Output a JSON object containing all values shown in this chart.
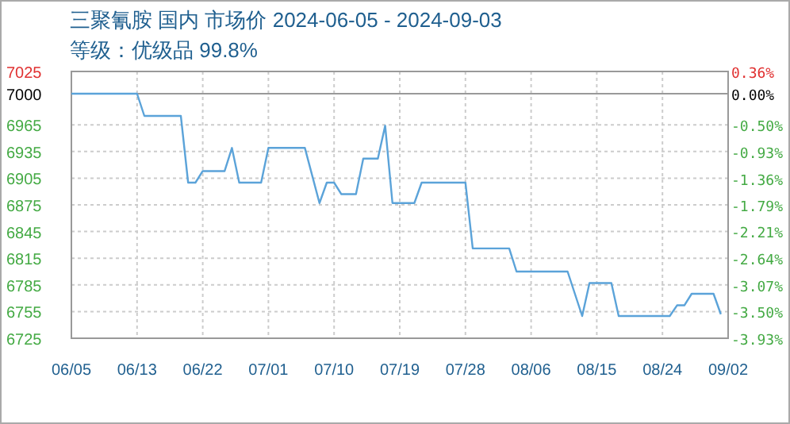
{
  "chart_data": {
    "type": "line",
    "title": "三聚氰胺 国内 市场价 2024-06-05 - 2024-09-03",
    "subtitle": "等级：优级品 99.8%",
    "x": [
      "2024-06-05",
      "2024-06-14",
      "2024-06-15",
      "2024-06-20",
      "2024-06-21",
      "2024-06-22",
      "2024-06-23",
      "2024-06-26",
      "2024-06-27",
      "2024-06-28",
      "2024-07-01",
      "2024-07-02",
      "2024-07-07",
      "2024-07-09",
      "2024-07-10",
      "2024-07-11",
      "2024-07-12",
      "2024-07-14",
      "2024-07-15",
      "2024-07-17",
      "2024-07-18",
      "2024-07-19",
      "2024-07-22",
      "2024-07-23",
      "2024-07-29",
      "2024-07-30",
      "2024-08-04",
      "2024-08-05",
      "2024-08-12",
      "2024-08-14",
      "2024-08-15",
      "2024-08-18",
      "2024-08-19",
      "2024-08-26",
      "2024-08-27",
      "2024-08-28",
      "2024-08-29",
      "2024-09-01",
      "2024-09-02"
    ],
    "series": [
      {
        "color": "#5ba3d9",
        "values": [
          7000,
          7000,
          6975,
          6975,
          6900,
          6900,
          6913,
          6913,
          6939,
          6900,
          6900,
          6939,
          6939,
          6877,
          6900,
          6900,
          6887,
          6887,
          6927,
          6927,
          6964,
          6877,
          6877,
          6900,
          6900,
          6826,
          6826,
          6800,
          6800,
          6750,
          6787,
          6787,
          6750,
          6750,
          6762,
          6762,
          6775,
          6775,
          6752
        ]
      }
    ],
    "xlim": [
      "2024-06-05",
      "2024-09-03"
    ],
    "xticks": [
      {
        "value": "2024-06-05",
        "label": "06/05"
      },
      {
        "value": "2024-06-14",
        "label": "06/13"
      },
      {
        "value": "2024-06-23",
        "label": "06/22"
      },
      {
        "value": "2024-07-02",
        "label": "07/01"
      },
      {
        "value": "2024-07-11",
        "label": "07/10"
      },
      {
        "value": "2024-07-20",
        "label": "07/19"
      },
      {
        "value": "2024-07-29",
        "label": "07/28"
      },
      {
        "value": "2024-08-07",
        "label": "08/06"
      },
      {
        "value": "2024-08-16",
        "label": "08/15"
      },
      {
        "value": "2024-08-25",
        "label": "08/24"
      },
      {
        "value": "2024-09-03",
        "label": "09/02"
      }
    ],
    "ylim": [
      6725,
      7025
    ],
    "yticks": [
      7025,
      7000,
      6965,
      6935,
      6905,
      6875,
      6845,
      6815,
      6785,
      6755,
      6725
    ],
    "y2lim": [
      -3.93,
      0.36
    ],
    "y2ticks": [
      {
        "value": 0.36,
        "label": "0.36%"
      },
      {
        "value": 0,
        "label": "0.00%"
      },
      {
        "value": -0.5,
        "label": "-0.50%"
      },
      {
        "value": -0.93,
        "label": "-0.93%"
      },
      {
        "value": -1.36,
        "label": "-1.36%"
      },
      {
        "value": -1.79,
        "label": "-1.79%"
      },
      {
        "value": -2.21,
        "label": "-2.21%"
      },
      {
        "value": -2.64,
        "label": "-2.64%"
      },
      {
        "value": -3.07,
        "label": "-3.07%"
      },
      {
        "value": -3.5,
        "label": "-3.50%"
      },
      {
        "value": -3.93,
        "label": "-3.93%"
      }
    ],
    "grid": true,
    "marker": "none",
    "line_style": "solid"
  }
}
